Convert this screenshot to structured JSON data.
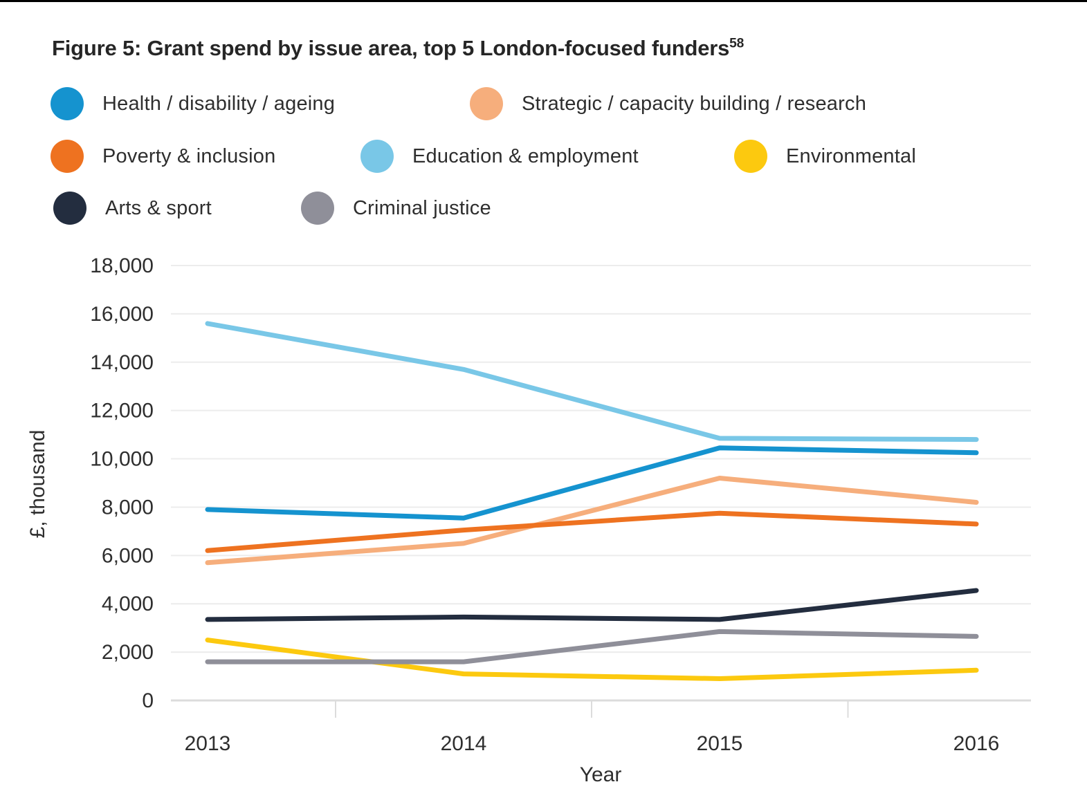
{
  "title": {
    "main": "Figure 5: Grant spend by issue area, top 5 London-focused funders",
    "superscript": "58"
  },
  "colors": {
    "health_blue": "#1593CF",
    "strategic_peach": "#F6AE7C",
    "poverty_orange": "#EE7220",
    "education_lightblue": "#79C7E7",
    "environmental_yellow": "#FCC90F",
    "arts_navy": "#232D3F",
    "criminal_gray": "#8F8F99",
    "gridline": "#ececec",
    "axis_line": "#dcdcdc",
    "text": "#2e2e2e"
  },
  "chart_data": {
    "type": "line",
    "x": [
      "2013",
      "2014",
      "2015",
      "2016"
    ],
    "xlabel": "Year",
    "ylabel": "£, thousand",
    "ylim": [
      0,
      18000
    ],
    "ytick_step": 2000,
    "ytick_labels": [
      "0",
      "2,000",
      "4,000",
      "6,000",
      "8,000",
      "10,000",
      "12,000",
      "14,000",
      "16,000",
      "18,000"
    ],
    "grid": "horizontal",
    "legend_position": "top",
    "series": [
      {
        "name": "Health / disability / ageing",
        "color": "#1593CF",
        "values": [
          7900,
          7550,
          10450,
          10250
        ]
      },
      {
        "name": "Strategic / capacity building / research",
        "color": "#F6AE7C",
        "values": [
          5700,
          6500,
          9200,
          8200
        ]
      },
      {
        "name": "Poverty & inclusion",
        "color": "#EE7220",
        "values": [
          6200,
          7050,
          7750,
          7300
        ]
      },
      {
        "name": "Education & employment",
        "color": "#79C7E7",
        "values": [
          15600,
          13700,
          10850,
          10800
        ]
      },
      {
        "name": "Environmental",
        "color": "#FCC90F",
        "values": [
          2500,
          1100,
          900,
          1250
        ]
      },
      {
        "name": "Arts & sport",
        "color": "#232D3F",
        "values": [
          3350,
          3450,
          3350,
          4550
        ]
      },
      {
        "name": "Criminal justice",
        "color": "#8F8F99",
        "values": [
          1600,
          1600,
          2850,
          2650
        ]
      }
    ]
  }
}
